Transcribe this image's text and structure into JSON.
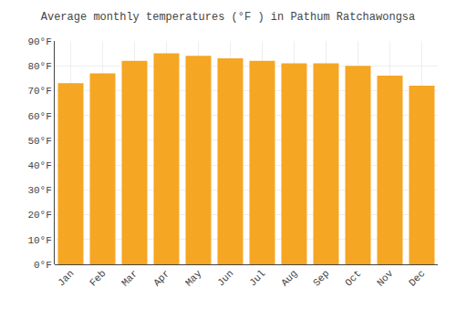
{
  "chart_data": {
    "type": "bar",
    "title": "Average monthly temperatures (°F ) in Pathum Ratchawongsa",
    "categories": [
      "Jan",
      "Feb",
      "Mar",
      "Apr",
      "May",
      "Jun",
      "Jul",
      "Aug",
      "Sep",
      "Oct",
      "Nov",
      "Dec"
    ],
    "values": [
      73,
      77,
      82,
      85,
      84,
      83,
      82,
      81,
      81,
      80,
      76,
      72
    ],
    "color": "#F5A623",
    "ylim": [
      0,
      90
    ],
    "yticks": [
      {
        "value": 0,
        "label": "0°F"
      },
      {
        "value": 10,
        "label": "10°F"
      },
      {
        "value": 20,
        "label": "20°F"
      },
      {
        "value": 30,
        "label": "30°F"
      },
      {
        "value": 40,
        "label": "40°F"
      },
      {
        "value": 50,
        "label": "50°F"
      },
      {
        "value": 60,
        "label": "60°F"
      },
      {
        "value": 70,
        "label": "70°F"
      },
      {
        "value": 80,
        "label": "80°F"
      },
      {
        "value": 90,
        "label": "90°F"
      }
    ],
    "grid": true
  }
}
